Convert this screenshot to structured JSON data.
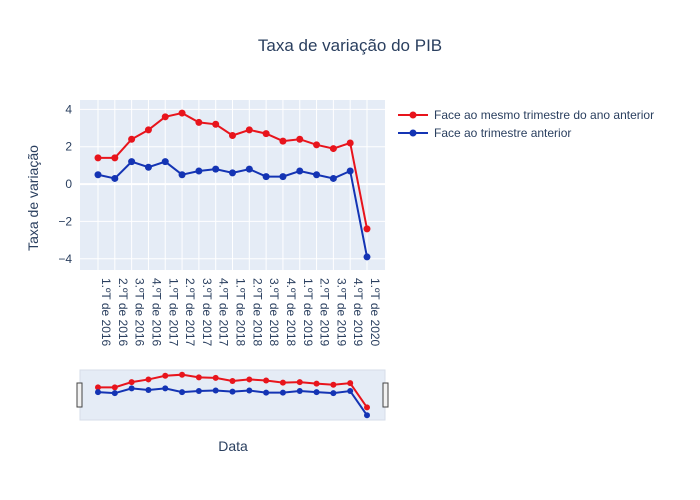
{
  "chart_data": {
    "type": "line",
    "title": "Taxa de variação do PIB",
    "xlabel": "Data",
    "ylabel": "Taxa de variação",
    "ylim": [
      -4.6,
      4.5
    ],
    "yticks": [
      -4,
      -2,
      0,
      2,
      4
    ],
    "yticklabels": [
      "−4",
      "−2",
      "0",
      "2",
      "4"
    ],
    "grid": true,
    "legend_position": "top-right",
    "range_slider": true,
    "categories": [
      "1.ºT de 2016",
      "2.ºT de 2016",
      "3.ºT de 2016",
      "4.ºT de 2016",
      "1.ºT de 2017",
      "2.ºT de 2017",
      "3.ºT de 2017",
      "4.ºT de 2017",
      "1.ºT de 2018",
      "2.ºT de 2018",
      "3.ºT de 2018",
      "4.ºT de 2018",
      "1.ºT de 2019",
      "2.ºT de 2019",
      "3.ºT de 2019",
      "4.ºT de 2019",
      "1.ºT de 2020"
    ],
    "series": [
      {
        "name": "Face ao mesmo trimestre do ano anterior",
        "color": "#e8141c",
        "values": [
          1.4,
          1.4,
          2.4,
          2.9,
          3.6,
          3.8,
          3.3,
          3.2,
          2.6,
          2.9,
          2.7,
          2.3,
          2.4,
          2.1,
          1.9,
          2.2,
          -2.4
        ]
      },
      {
        "name": "Face ao trimestre anterior",
        "color": "#1434b4",
        "values": [
          0.5,
          0.3,
          1.2,
          0.9,
          1.2,
          0.5,
          0.7,
          0.8,
          0.6,
          0.8,
          0.4,
          0.4,
          0.7,
          0.5,
          0.3,
          0.7,
          -3.9
        ]
      }
    ]
  }
}
